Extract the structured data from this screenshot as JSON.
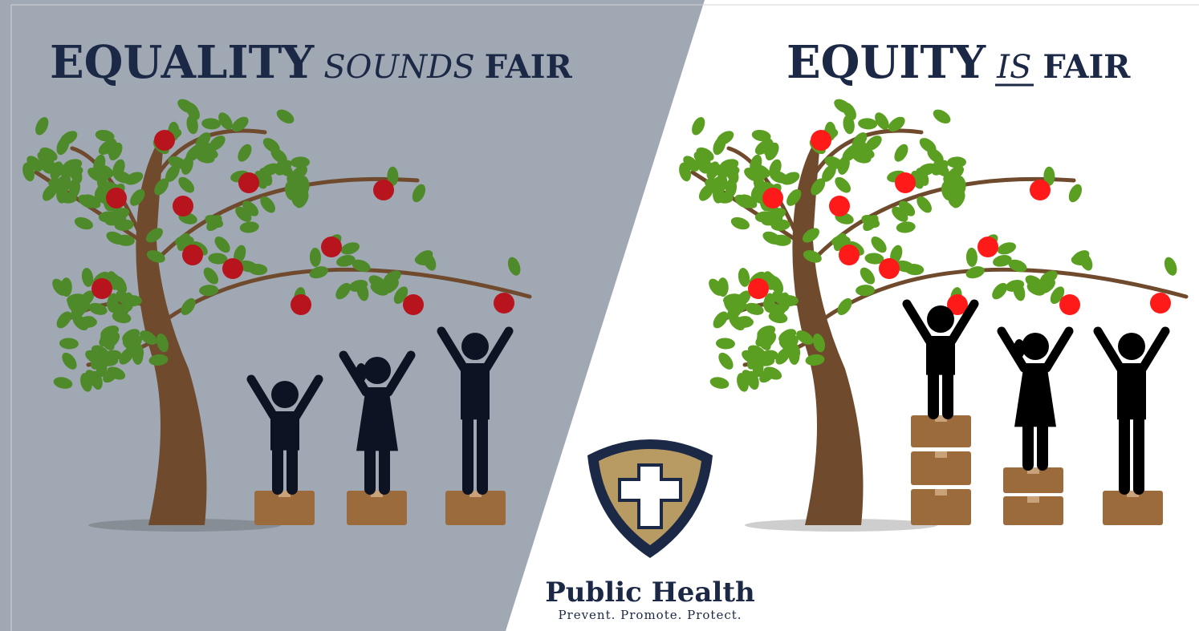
{
  "left_panel": {
    "title": {
      "main": "EQUALITY",
      "qualifier": "SOUNDS",
      "end": "FAIR"
    }
  },
  "right_panel": {
    "title": {
      "main": "EQUITY",
      "qualifier": "IS",
      "end": "FAIR"
    }
  },
  "logo": {
    "name": "Public Health",
    "tagline": "Prevent. Promote. Protect."
  }
}
